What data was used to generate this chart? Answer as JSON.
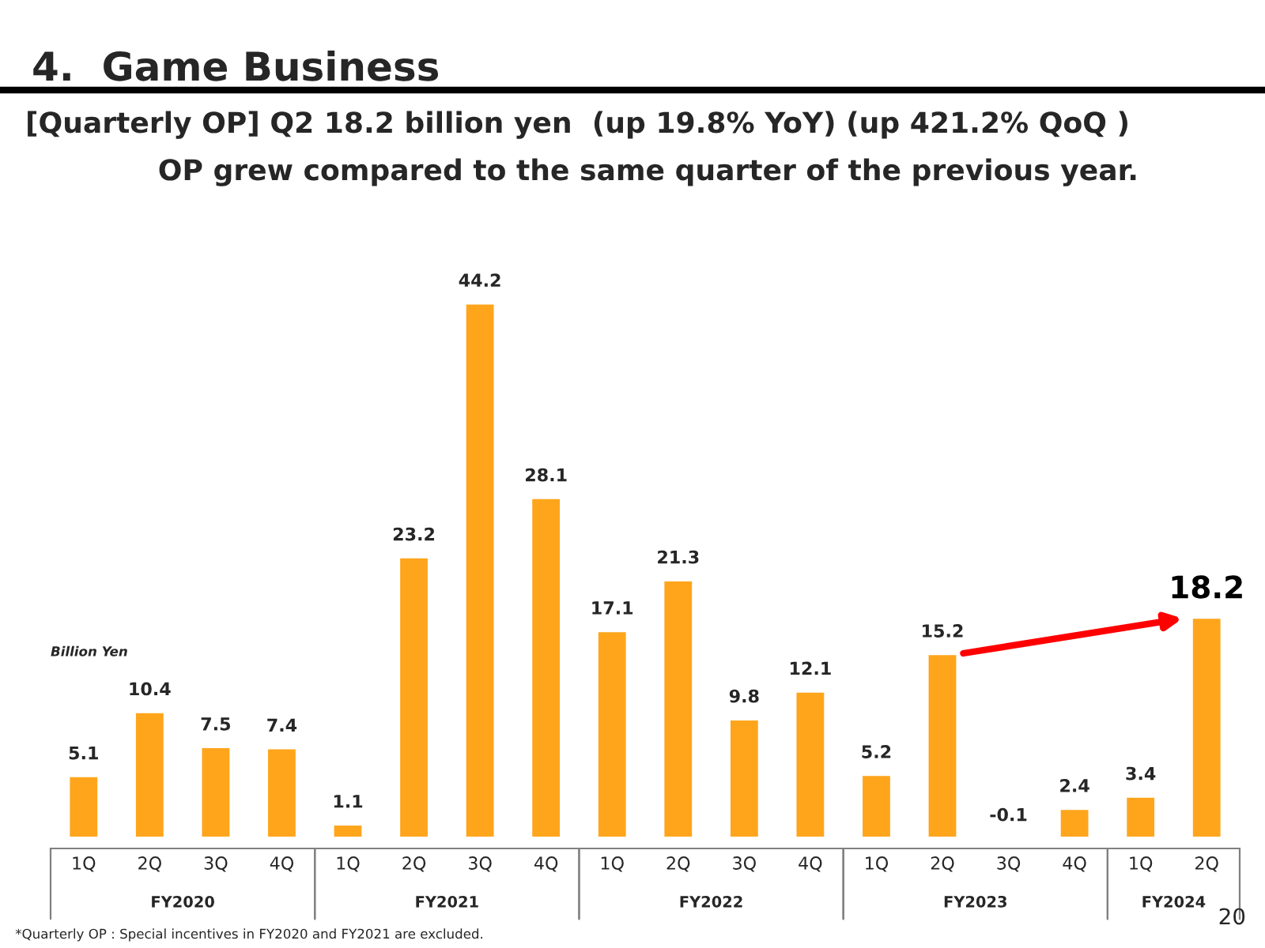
{
  "chart_data": {
    "type": "bar",
    "title": "4.  Game Business",
    "subtitle": "[Quarterly OP] Q2 18.2 billion yen  (up 19.8% YoY) (up 421.2% QoQ )\nOP grew compared to the same quarter of the previous year.",
    "ylabel": "Billion Yen",
    "categories": [
      "1Q",
      "2Q",
      "3Q",
      "4Q",
      "1Q",
      "2Q",
      "3Q",
      "4Q",
      "1Q",
      "2Q",
      "3Q",
      "4Q",
      "1Q",
      "2Q",
      "3Q",
      "4Q",
      "1Q",
      "2Q"
    ],
    "values": [
      5.1,
      10.4,
      7.5,
      7.4,
      1.1,
      23.2,
      44.2,
      28.1,
      17.1,
      21.3,
      9.8,
      12.1,
      5.2,
      15.2,
      -0.1,
      2.4,
      3.4,
      18.2
    ],
    "color": "#ffa51c",
    "data_labels": true,
    "annotations": [
      "FY2020",
      "FY2021",
      "FY2022",
      "FY2023",
      "FY2024",
      "*Quarterly OP : Special incentives in FY2020 and FY2021 are excluded.",
      "20"
    ]
  }
}
